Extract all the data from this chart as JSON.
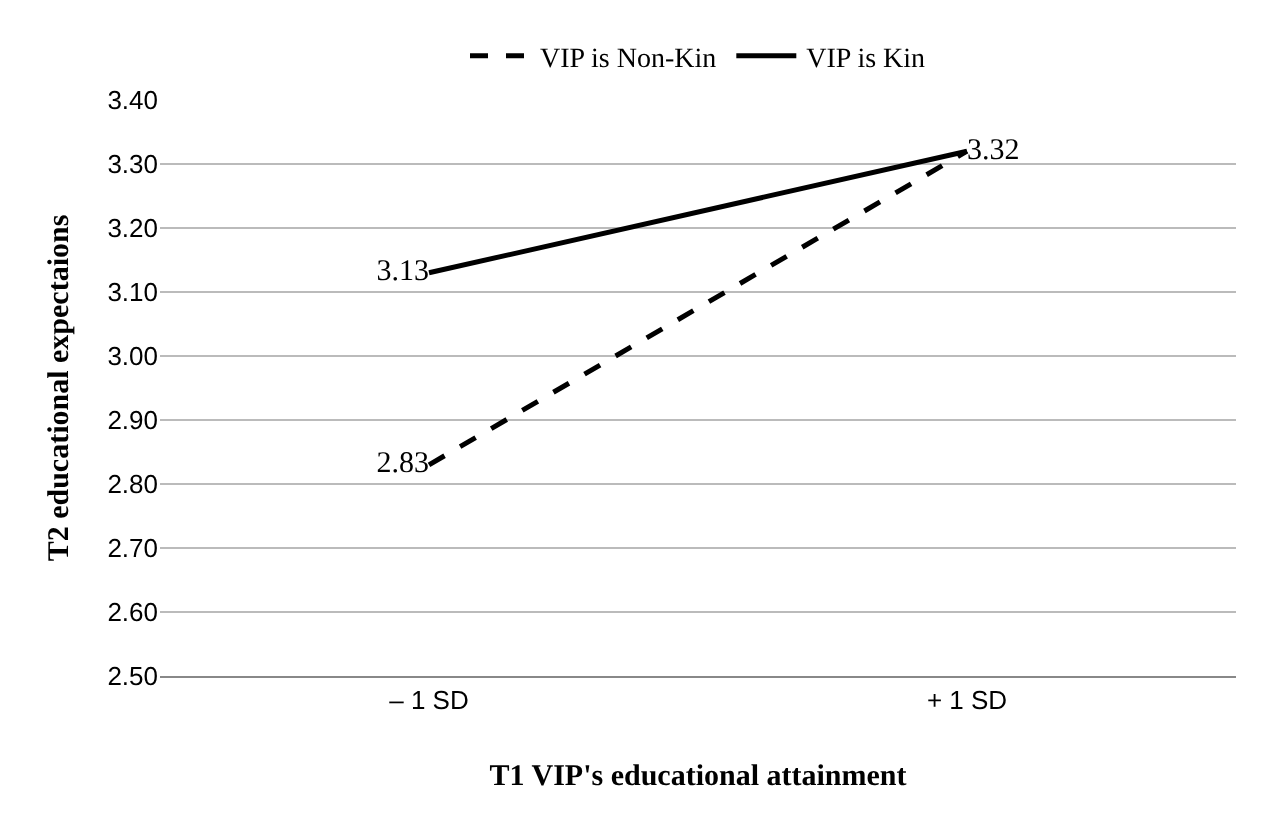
{
  "chart_data": {
    "type": "line",
    "xlabel": "T1 VIP's educational attainment",
    "ylabel": "T2 educational expectaions",
    "categories": [
      "– 1 SD",
      "+ 1 SD"
    ],
    "series": [
      {
        "name": "VIP is Non-Kin",
        "color": "#000000",
        "line_style": "dashed",
        "values": [
          2.83,
          3.32
        ],
        "value_labels": [
          "2.83",
          null
        ]
      },
      {
        "name": "VIP is Kin",
        "color": "#000000",
        "line_style": "solid",
        "values": [
          3.13,
          3.32
        ],
        "value_labels": [
          "3.13",
          "3.32"
        ]
      }
    ],
    "ylim": [
      2.5,
      3.4
    ],
    "yticks": [
      {
        "value": 2.5,
        "label": "2.50"
      },
      {
        "value": 2.6,
        "label": "2.60"
      },
      {
        "value": 2.7,
        "label": "2.70"
      },
      {
        "value": 2.8,
        "label": "2.80"
      },
      {
        "value": 2.9,
        "label": "2.90"
      },
      {
        "value": 3.0,
        "label": "3.00"
      },
      {
        "value": 3.1,
        "label": "3.10"
      },
      {
        "value": 3.2,
        "label": "3.20"
      },
      {
        "value": 3.3,
        "label": "3.30"
      },
      {
        "value": 3.4,
        "label": "3.40"
      }
    ],
    "grid": "y",
    "legend": "top",
    "marker": "none"
  }
}
